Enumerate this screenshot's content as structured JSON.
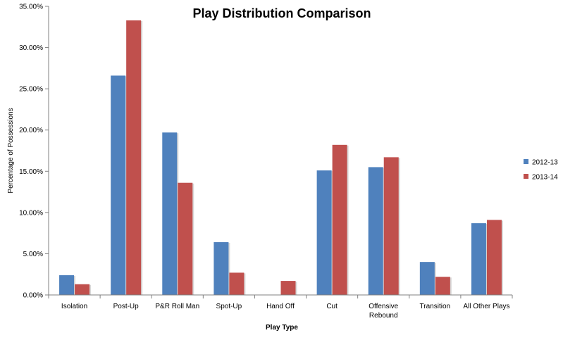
{
  "chart_data": {
    "type": "bar",
    "title": "Play Distribution Comparison",
    "xlabel": "Play Type",
    "ylabel": "Percentage of Possessions",
    "ylim": [
      0,
      0.35
    ],
    "yticks": [
      "0.00%",
      "5.00%",
      "10.00%",
      "15.00%",
      "20.00%",
      "25.00%",
      "30.00%",
      "35.00%"
    ],
    "categories": [
      "Isolation",
      "Post-Up",
      "P&R Roll Man",
      "Spot-Up",
      "Hand Off",
      "Cut",
      "Offensive Rebound",
      "Transition",
      "All Other Plays"
    ],
    "category_lines": [
      [
        "Isolation"
      ],
      [
        "Post-Up"
      ],
      [
        "P&R Roll Man"
      ],
      [
        "Spot-Up"
      ],
      [
        "Hand Off"
      ],
      [
        "Cut"
      ],
      [
        "Offensive",
        "Rebound"
      ],
      [
        "Transition"
      ],
      [
        "All Other Plays"
      ]
    ],
    "series": [
      {
        "name": "2012-13",
        "color": "#4f81bd",
        "values": [
          0.024,
          0.266,
          0.197,
          0.064,
          0.0,
          0.151,
          0.155,
          0.04,
          0.087
        ]
      },
      {
        "name": "2013-14",
        "color": "#c0504d",
        "values": [
          0.013,
          0.333,
          0.136,
          0.027,
          0.017,
          0.182,
          0.167,
          0.022,
          0.091
        ]
      }
    ],
    "grid": false,
    "legend_position": "right"
  }
}
